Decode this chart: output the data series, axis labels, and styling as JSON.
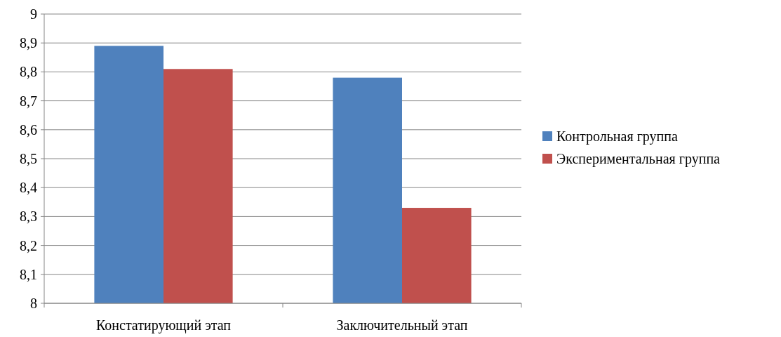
{
  "chart_data": {
    "type": "bar",
    "categories": [
      "Констатирующий этап",
      "Заключительный этап"
    ],
    "series": [
      {
        "name": "Контрольная группа",
        "color": "#4f81bd",
        "values": [
          8.89,
          8.78
        ]
      },
      {
        "name": "Экспериментальная группа",
        "color": "#c0504d",
        "values": [
          8.81,
          8.33
        ]
      }
    ],
    "ylim": [
      8,
      9
    ],
    "yticks": [
      8,
      {
        "value": 8.1,
        "label": "8,1"
      },
      {
        "value": 8.2,
        "label": "8,2"
      },
      {
        "value": 8.3,
        "label": "8,3"
      },
      {
        "value": 8.4,
        "label": "8,4"
      },
      {
        "value": 8.5,
        "label": "8,5"
      },
      {
        "value": 8.6,
        "label": "8,6"
      },
      {
        "value": 8.7,
        "label": "8,7"
      },
      {
        "value": 8.8,
        "label": "8,8"
      },
      {
        "value": 8.9,
        "label": "8,9"
      },
      9
    ],
    "grid": "y",
    "legend": "right"
  }
}
